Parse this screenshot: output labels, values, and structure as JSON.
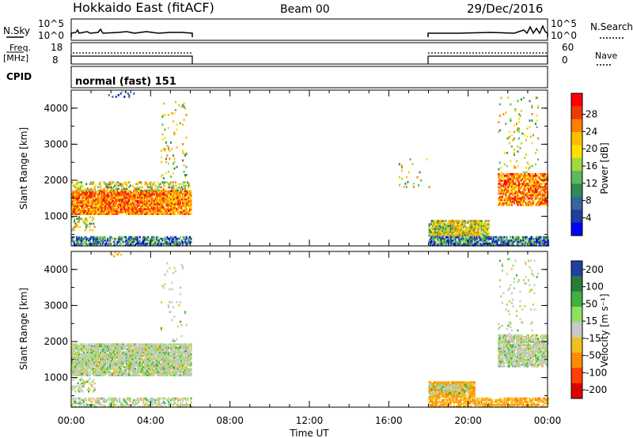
{
  "header": {
    "station": "Hokkaido East (fitACF)",
    "beam": "Beam 00",
    "date": "29/Dec/2016"
  },
  "strips": {
    "nsky_label": "N.Sky",
    "nsky_ticks": [
      "10^5",
      "10^0"
    ],
    "nsearch_label": "N.Search",
    "nsearch_ticks": [
      "10^5",
      "10^0"
    ],
    "freq_label": "Freq.",
    "freq_unit": "[MHz]",
    "freq_ticks": [
      "18",
      "8"
    ],
    "nave_label": "Nave",
    "nave_ticks": [
      "60",
      "0"
    ],
    "cpid_label": "CPID",
    "cpid_value": "normal (fast) 151"
  },
  "chart_data": [
    {
      "type": "heatmap",
      "name": "power",
      "ylabel": "Slant Range [km]",
      "y_ticks": [
        "4000",
        "3000",
        "2000",
        "1000"
      ],
      "ylim": [
        180,
        4500
      ],
      "colorbar_label": "Power [dB]",
      "colorbar_ticks": [
        "28",
        "24",
        "20",
        "16",
        "12",
        "8",
        "4"
      ],
      "colorbar_colors": [
        "#ff0000",
        "#ee3a00",
        "#ff7f00",
        "#ffbf00",
        "#ffe000",
        "#a0d840",
        "#5cb85c",
        "#2e8b57",
        "#336699",
        "#1f3f9f",
        "#0000ff"
      ],
      "data_windows_ut": [
        [
          0,
          6
        ],
        [
          18,
          24
        ]
      ]
    },
    {
      "type": "heatmap",
      "name": "velocity",
      "ylabel": "Slant Range [km]",
      "y_ticks": [
        "4000",
        "3000",
        "2000",
        "1000"
      ],
      "ylim": [
        180,
        4500
      ],
      "colorbar_label": "Velocity [m s⁻¹]",
      "colorbar_ticks": [
        "200",
        "100",
        "50",
        "15",
        "-15",
        "-50",
        "-100",
        "-200"
      ],
      "colorbar_colors": [
        "#2040a0",
        "#2c7a3a",
        "#40b040",
        "#90e060",
        "#c8c8c8",
        "#f0c020",
        "#ff8c00",
        "#ff4000",
        "#dd0000"
      ],
      "data_windows_ut": [
        [
          0,
          6
        ],
        [
          18,
          24
        ]
      ]
    }
  ],
  "time_axis": {
    "title": "Time UT",
    "ticks": [
      "00:00",
      "04:00",
      "08:00",
      "12:00",
      "16:00",
      "20:00",
      "00:00"
    ]
  }
}
